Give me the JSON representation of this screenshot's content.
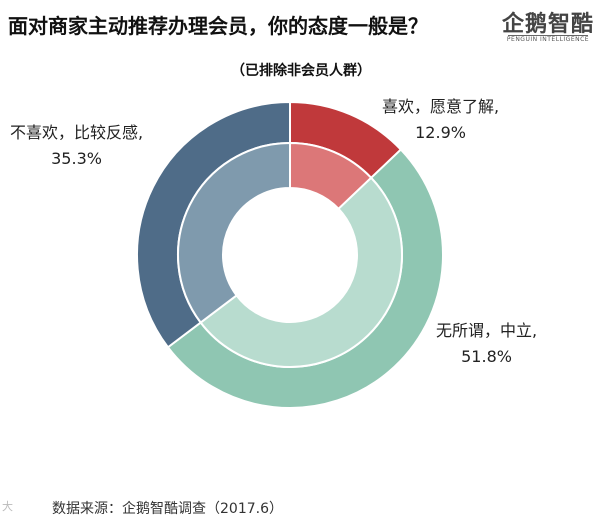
{
  "header": {
    "title": "面对商家主动推荐办理会员，你的态度一般是？",
    "subtitle": "（已排除非会员人群）",
    "logo_text": "企鹅智酷",
    "logo_subtext": "PENGUIN INTELLIGENCE"
  },
  "chart_data": {
    "type": "pie",
    "title": "面对商家主动推荐办理会员，你的态度一般是？",
    "subtitle": "（已排除非会员人群）",
    "donut": true,
    "unit": "%",
    "slices": [
      {
        "label_line1": "喜欢，愿意了解,",
        "label_line2": "12.9%",
        "value": 12.9,
        "outer_color": "#c0393b",
        "inner_color": "#dc7778"
      },
      {
        "label_line1": "无所谓，中立,",
        "label_line2": "51.8%",
        "value": 51.8,
        "outer_color": "#8fc6b2",
        "inner_color": "#b8dccf"
      },
      {
        "label_line1": "不喜欢，比较反感,",
        "label_line2": "35.3%",
        "value": 35.3,
        "outer_color": "#4f6c88",
        "inner_color": "#7f9aad"
      }
    ]
  },
  "footer": {
    "source": "数据来源：企鹅智酷调查（2017.6）",
    "watermark": "大"
  }
}
